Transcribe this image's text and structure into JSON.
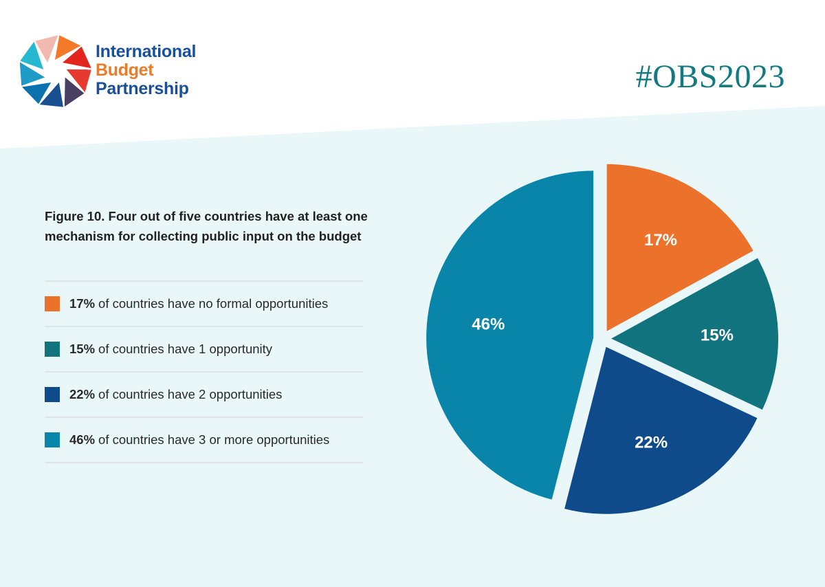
{
  "brand": {
    "line1": "International",
    "line2": "Budget",
    "line3": "Partnership",
    "hashtag": "#OBS2023",
    "colors": {
      "navy": "#1a4f9c",
      "orange": "#ec7a26",
      "teal": "#137a82"
    }
  },
  "legend": {
    "items": [
      {
        "pct": "17%",
        "text": "of countries have no formal opportunities",
        "color": "#ec712b"
      },
      {
        "pct": "15%",
        "text": "of countries have 1 opportunity",
        "color": "#10737e"
      },
      {
        "pct": "22%",
        "text": "of countries have 2 opportunities",
        "color": "#0f4a8a"
      },
      {
        "pct": "46%",
        "text": "of countries have 3 or more opportunities",
        "color": "#0885a9"
      }
    ]
  },
  "chart_data": {
    "type": "pie",
    "title": "Figure 10. Four out of five countries have at least one mechanism for collecting public input on the budget",
    "categories": [
      "of countries have no formal opportunities",
      "of countries have 1 opportunity",
      "of countries have 2 opportunities",
      "of countries have 3 or more opportunities"
    ],
    "values": [
      17,
      15,
      22,
      46
    ],
    "labels": [
      "17%",
      "15%",
      "22%",
      "46%"
    ],
    "colors": [
      "#ec712b",
      "#10737e",
      "#0f4a8a",
      "#0885a9"
    ],
    "start": "12 o'clock",
    "direction": "clockwise",
    "legend": "left"
  }
}
